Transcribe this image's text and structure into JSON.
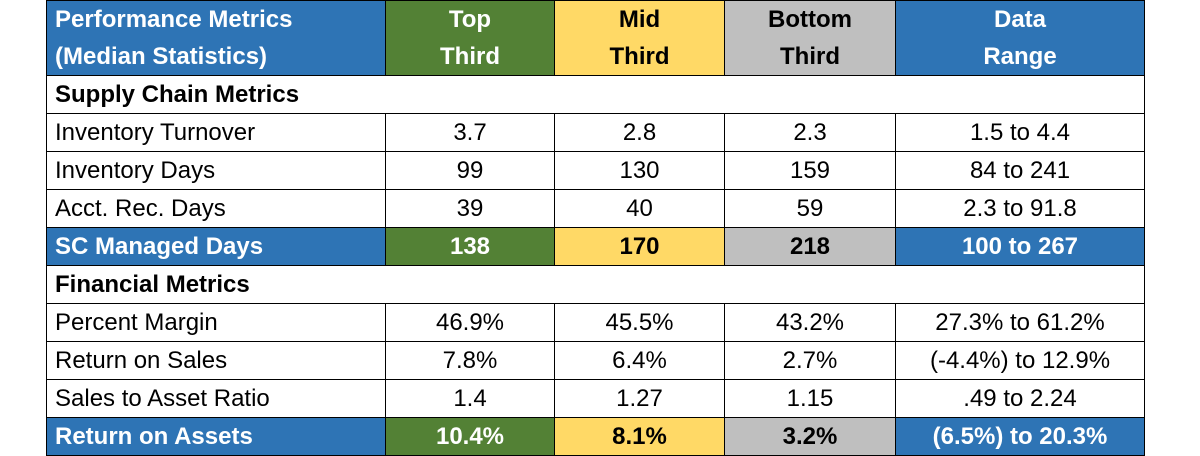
{
  "colors": {
    "header_blue": "#2E74B5",
    "top_green": "#538135",
    "mid_yellow": "#FFD966",
    "bottom_gray": "#BFBFBF"
  },
  "header": {
    "metric": [
      "Performance Metrics",
      "(Median Statistics)"
    ],
    "top": [
      "Top",
      "Third"
    ],
    "mid": [
      "Mid",
      "Third"
    ],
    "bottom": [
      "Bottom",
      "Third"
    ],
    "range": [
      "Data",
      "Range"
    ]
  },
  "sections": [
    {
      "title": "Supply Chain Metrics",
      "rows": [
        {
          "label": "Inventory Turnover",
          "top": "3.7",
          "mid": "2.8",
          "bottom": "2.3",
          "range": "1.5 to 4.4"
        },
        {
          "label": "Inventory Days",
          "top": "99",
          "mid": "130",
          "bottom": "159",
          "range": "84 to 241"
        },
        {
          "label": "Acct. Rec. Days",
          "top": "39",
          "mid": "40",
          "bottom": "59",
          "range": "2.3 to 91.8"
        }
      ],
      "summary": {
        "label": "SC Managed Days",
        "top": "138",
        "mid": "170",
        "bottom": "218",
        "range": "100 to 267"
      }
    },
    {
      "title": "Financial Metrics",
      "rows": [
        {
          "label": "Percent Margin",
          "top": "46.9%",
          "mid": "45.5%",
          "bottom": "43.2%",
          "range": "27.3% to 61.2%"
        },
        {
          "label": "Return on Sales",
          "top": "7.8%",
          "mid": "6.4%",
          "bottom": "2.7%",
          "range": "(-4.4%) to 12.9%"
        },
        {
          "label": "Sales to Asset Ratio",
          "top": "1.4",
          "mid": "1.27",
          "bottom": "1.15",
          "range": ".49 to 2.24"
        }
      ],
      "summary": {
        "label": "Return on Assets",
        "top": "10.4%",
        "mid": "8.1%",
        "bottom": "3.2%",
        "range": "(6.5%) to 20.3%"
      }
    }
  ]
}
